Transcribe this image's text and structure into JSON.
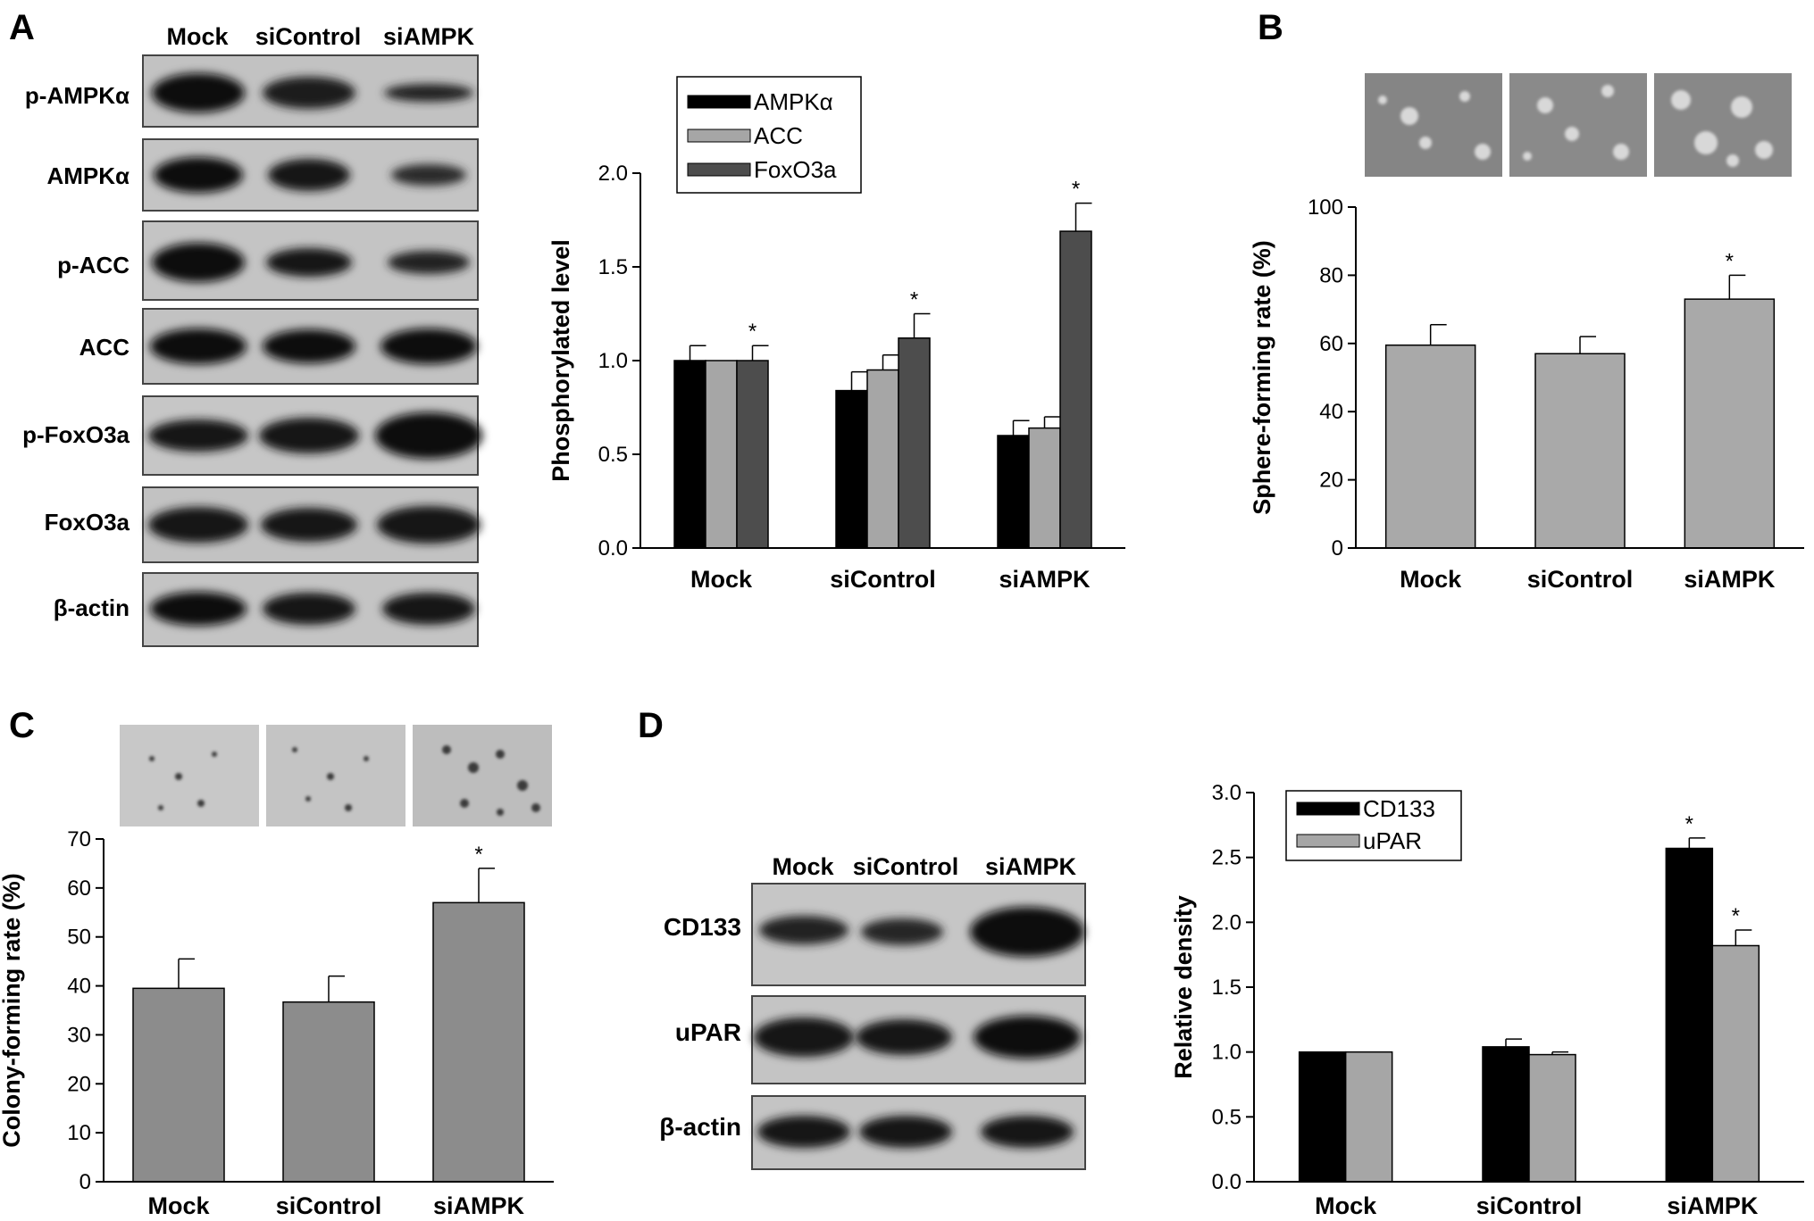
{
  "panel_labels": [
    "A",
    "B",
    "C",
    "D"
  ],
  "colors": {
    "ampk": "#000000",
    "acc": "#a6a6a6",
    "foxo3a": "#4d4d4d",
    "bar_gray": "#a9a9a9",
    "bar_dark_gray": "#8c8c8c",
    "cd133": "#000000",
    "upar": "#a6a6a6"
  },
  "blot_a": {
    "lanes": [
      "Mock",
      "siControl",
      "siAMPK"
    ],
    "rows": [
      "p-AMPKα",
      "AMPKα",
      "p-ACC",
      "ACC",
      "p-FoxO3a",
      "FoxO3a",
      "β-actin"
    ]
  },
  "blot_d": {
    "lanes": [
      "Mock",
      "siControl",
      "siAMPK"
    ],
    "rows": [
      "CD133",
      "uPAR",
      "β-actin"
    ]
  },
  "chart_data": [
    {
      "panel": "A",
      "type": "bar",
      "categories": [
        "Mock",
        "siControl",
        "siAMPK"
      ],
      "series": [
        {
          "name": "AMPKα",
          "values": [
            1.0,
            0.84,
            0.6
          ],
          "errors": [
            0.08,
            0.1,
            0.08
          ]
        },
        {
          "name": "ACC",
          "values": [
            1.0,
            0.95,
            0.64
          ],
          "errors": [
            0.0,
            0.08,
            0.06
          ]
        },
        {
          "name": "FoxO3a",
          "values": [
            1.0,
            1.12,
            1.69
          ],
          "errors": [
            0.08,
            0.13,
            0.15
          ]
        }
      ],
      "significance": [
        [
          "",
          "",
          ""
        ],
        [
          "",
          "",
          ""
        ],
        [
          "*",
          "*",
          "*"
        ]
      ],
      "ylabel": "Phosphorylated level",
      "ylim": [
        0,
        2.0
      ],
      "yticks": [
        "0.0",
        "0.5",
        "1.0",
        "1.5",
        "2.0"
      ],
      "legend": "top-left"
    },
    {
      "panel": "B",
      "type": "bar",
      "categories": [
        "Mock",
        "siControl",
        "siAMPK"
      ],
      "values": [
        59.5,
        57,
        73
      ],
      "errors": [
        6,
        5,
        7
      ],
      "significance": [
        "",
        "",
        "*"
      ],
      "ylabel": "Sphere-forming rate (%)",
      "ylim": [
        0,
        100
      ],
      "yticks": [
        "0",
        "20",
        "40",
        "60",
        "80",
        "100"
      ]
    },
    {
      "panel": "C",
      "type": "bar",
      "categories": [
        "Mock",
        "siControl",
        "siAMPK"
      ],
      "values": [
        39.5,
        36.7,
        57
      ],
      "errors": [
        6,
        5.3,
        7
      ],
      "significance": [
        "",
        "",
        "*"
      ],
      "ylabel": "Colony-forming rate (%)",
      "ylim": [
        0,
        70
      ],
      "yticks": [
        "0",
        "10",
        "20",
        "30",
        "40",
        "50",
        "60",
        "70"
      ]
    },
    {
      "panel": "D",
      "type": "bar",
      "categories": [
        "Mock",
        "siControl",
        "siAMPK"
      ],
      "series": [
        {
          "name": "CD133",
          "values": [
            1.0,
            1.04,
            2.57
          ],
          "errors": [
            0.0,
            0.06,
            0.08
          ]
        },
        {
          "name": "uPAR",
          "values": [
            1.0,
            0.98,
            1.82
          ],
          "errors": [
            0.0,
            0.02,
            0.12
          ]
        }
      ],
      "significance": [
        [
          "",
          "",
          "*"
        ],
        [
          "",
          "",
          "*"
        ]
      ],
      "ylabel": "Relative density",
      "ylim": [
        0,
        3.0
      ],
      "yticks": [
        "0.0",
        "0.5",
        "1.0",
        "1.5",
        "2.0",
        "2.5",
        "3.0"
      ],
      "legend": "top-left"
    }
  ]
}
